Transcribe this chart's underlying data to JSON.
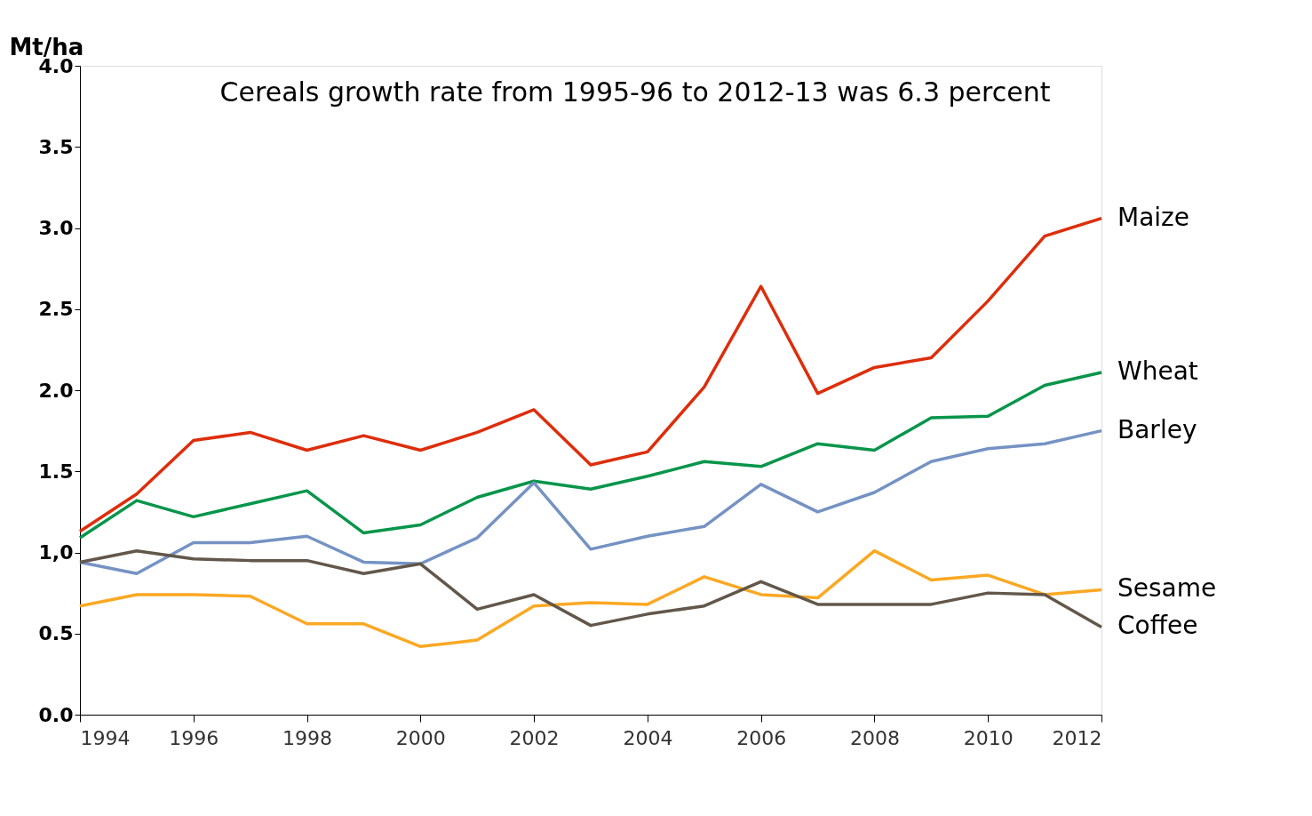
{
  "chart_data": {
    "type": "line",
    "ylabel": "Mt/ha",
    "annotations": [
      "Cereals growth rate from 1995-96 to 2012-13  was 6.3 percent"
    ],
    "x": [
      1994,
      1995,
      1996,
      1997,
      1998,
      1999,
      2000,
      2001,
      2002,
      2003,
      2004,
      2005,
      2006,
      2007,
      2008,
      2009,
      2010,
      2011,
      2012
    ],
    "series": [
      {
        "name": "Maize",
        "color": "#de2d0b",
        "values": [
          1.13,
          1.36,
          1.69,
          1.74,
          1.63,
          1.72,
          1.63,
          1.74,
          1.88,
          1.54,
          1.62,
          2.02,
          2.64,
          1.98,
          2.14,
          2.2,
          2.55,
          2.95,
          3.06
        ]
      },
      {
        "name": "Wheat",
        "color": "#07954a",
        "values": [
          1.09,
          1.32,
          1.22,
          1.3,
          1.38,
          1.12,
          1.17,
          1.34,
          1.44,
          1.39,
          1.47,
          1.56,
          1.53,
          1.67,
          1.63,
          1.83,
          1.84,
          2.03,
          2.11
        ]
      },
      {
        "name": "Barley",
        "color": "#7592c3",
        "values": [
          0.94,
          0.87,
          1.06,
          1.06,
          1.1,
          0.94,
          0.93,
          1.09,
          1.43,
          1.02,
          1.1,
          1.16,
          1.42,
          1.25,
          1.37,
          1.56,
          1.64,
          1.67,
          1.75
        ]
      },
      {
        "name": "Sesame",
        "color": "#fba823",
        "values": [
          0.67,
          0.74,
          0.74,
          0.73,
          0.56,
          0.56,
          0.42,
          0.46,
          0.67,
          0.69,
          0.68,
          0.85,
          0.74,
          0.72,
          1.01,
          0.83,
          0.86,
          0.74,
          0.77
        ]
      },
      {
        "name": "Coffee",
        "color": "#62574a",
        "values": [
          0.94,
          1.01,
          0.96,
          0.95,
          0.95,
          0.87,
          0.93,
          0.65,
          0.74,
          0.55,
          0.62,
          0.67,
          0.82,
          0.68,
          0.68,
          0.68,
          0.75,
          0.74,
          0.54
        ]
      }
    ],
    "xlim": [
      1994,
      2012
    ],
    "xticks": [
      1994,
      1996,
      1998,
      2000,
      2002,
      2004,
      2006,
      2008,
      2010,
      2012
    ],
    "ylim": [
      0,
      4.0
    ],
    "yticks": [
      {
        "value": 0,
        "label": "0.0"
      },
      0.5,
      {
        "value": 1.0,
        "label": "1,0"
      },
      1.5,
      {
        "value": 2.0,
        "label": "2.0"
      },
      2.5,
      {
        "value": 3.0,
        "label": "3.0"
      },
      3.5,
      {
        "value": 4.0,
        "label": "4.0"
      }
    ],
    "grid": false,
    "legend": false,
    "line_style": "solid",
    "marker": "none"
  }
}
